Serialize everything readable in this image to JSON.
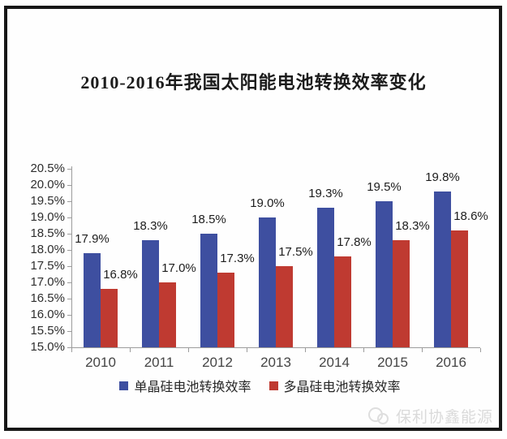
{
  "title": "2010-2016年我国太阳能电池转换效率变化",
  "watermark": {
    "text": "保利协鑫能源",
    "icon": "overlapping-circles-logo"
  },
  "chart_data": {
    "type": "bar",
    "title": "2010-2016年我国太阳能电池转换效率变化",
    "categories": [
      "2010",
      "2011",
      "2012",
      "2013",
      "2014",
      "2015",
      "2016"
    ],
    "series": [
      {
        "name": "单晶硅电池转换效率",
        "color": "#3E4FA0",
        "values": [
          17.9,
          18.3,
          18.5,
          19.0,
          19.3,
          19.5,
          19.8
        ]
      },
      {
        "name": "多晶硅电池转换效率",
        "color": "#BF3A31",
        "values": [
          16.8,
          17.0,
          17.3,
          17.5,
          17.8,
          18.3,
          18.6
        ]
      }
    ],
    "data_labels": [
      [
        "17.9%",
        "18.3%",
        "18.5%",
        "19.0%",
        "19.3%",
        "19.5%",
        "19.8%"
      ],
      [
        "16.8%",
        "17.0%",
        "17.3%",
        "17.5%",
        "17.8%",
        "18.3%",
        "18.6%"
      ]
    ],
    "ylim": [
      15.0,
      20.5
    ],
    "ytick_step": 0.5,
    "ytick_labels": [
      "15.0%",
      "15.5%",
      "16.0%",
      "16.5%",
      "17.0%",
      "17.5%",
      "18.0%",
      "18.5%",
      "19.0%",
      "19.5%",
      "20.0%",
      "20.5%"
    ],
    "xlabel": "",
    "ylabel": "",
    "grid": false,
    "legend_position": "bottom"
  }
}
